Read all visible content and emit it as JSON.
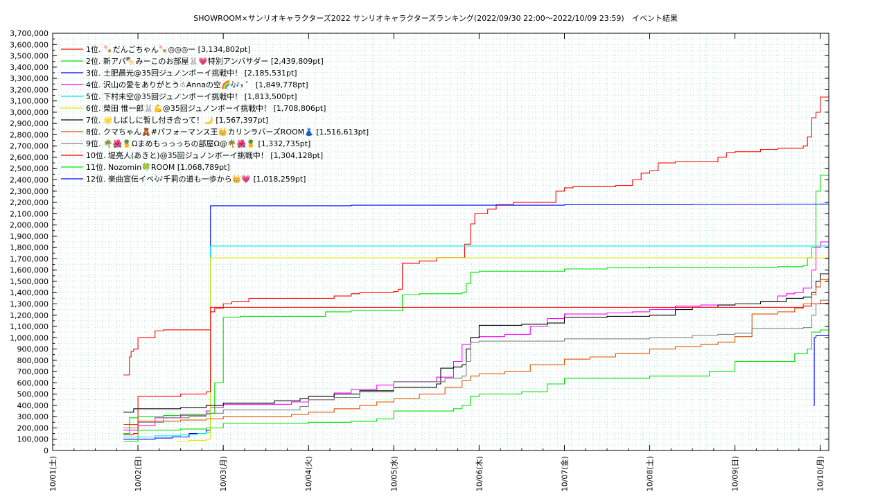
{
  "chart_data": {
    "type": "line",
    "title": "SHOWROOM×サンリオキャラクターズ2022 サンリオキャラクターズランキング(2022/09/30 22:00～2022/10/09 23:59)",
    "subtitle": "イベント結果",
    "xlabel": "",
    "ylabel": "",
    "x_tick_labels": [
      "10/01(土)",
      "10/02(日)",
      "10/03(月)",
      "10/04(火)",
      "10/05(水)",
      "10/06(木)",
      "10/07(金)",
      "10/08(土)",
      "10/09(日)",
      "10/10(月)"
    ],
    "xlim": [
      0,
      9.1
    ],
    "ylim": [
      0,
      3700000
    ],
    "y_tick_step": 100000,
    "grid": true,
    "legend_position": "top-left",
    "series": [
      {
        "name": "1位. 🍡だんごちゃん🍡◎◎◎ー [3,134,802pt]",
        "color": "#ff0000",
        "x": [
          0.83,
          0.88,
          0.9,
          0.92,
          0.95,
          1.0,
          1.05,
          1.1,
          1.2,
          1.3,
          1.35,
          1.5,
          1.7,
          1.8,
          1.85,
          1.85,
          1.9,
          2.0,
          2.1,
          2.3,
          2.5,
          2.8,
          3.0,
          3.3,
          3.5,
          3.6,
          3.8,
          4.0,
          4.05,
          4.1,
          4.3,
          4.5,
          4.7,
          4.8,
          4.83,
          4.9,
          4.95,
          5.1,
          5.2,
          5.4,
          5.6,
          5.8,
          5.9,
          6.0,
          6.1,
          6.3,
          6.6,
          6.8,
          6.9,
          7.0,
          7.1,
          7.3,
          7.5,
          7.6,
          7.8,
          7.9,
          8.0,
          8.1,
          8.3,
          8.5,
          8.7,
          8.8,
          8.85,
          8.9,
          8.95,
          9.0,
          9.1
        ],
        "y": [
          670000,
          670000,
          830000,
          880000,
          900000,
          1000000,
          1000000,
          1000000,
          1060000,
          1070000,
          1070000,
          1070000,
          1070000,
          1070000,
          1150000,
          1230000,
          1260000,
          1300000,
          1320000,
          1350000,
          1350000,
          1350000,
          1350000,
          1370000,
          1390000,
          1400000,
          1400000,
          1410000,
          1430000,
          1660000,
          1680000,
          1710000,
          1710000,
          1710000,
          1830000,
          2010000,
          2100000,
          2140000,
          2180000,
          2200000,
          2200000,
          2200000,
          2300000,
          2330000,
          2340000,
          2340000,
          2350000,
          2400000,
          2460000,
          2480000,
          2550000,
          2560000,
          2560000,
          2560000,
          2600000,
          2640000,
          2650000,
          2650000,
          2670000,
          2680000,
          2680000,
          2700000,
          2780000,
          2950000,
          3000000,
          3134802,
          3134802
        ]
      },
      {
        "name": "2位. 新アパ🍢みーこのお部屋🐰💗特別アンバサダー [2,439,809pt]",
        "color": "#00e000",
        "x": [
          0.83,
          0.85,
          0.9,
          1.0,
          1.3,
          1.6,
          1.8,
          1.85,
          1.9,
          2.0,
          2.2,
          2.5,
          2.8,
          3.0,
          3.2,
          3.5,
          3.9,
          4.0,
          4.1,
          4.3,
          4.7,
          4.8,
          4.85,
          4.9,
          5.0,
          5.3,
          5.8,
          6.0,
          6.5,
          7.0,
          7.5,
          8.0,
          8.5,
          8.8,
          8.85,
          8.9,
          8.95,
          9.0,
          9.1
        ],
        "y": [
          150000,
          150000,
          290000,
          300000,
          310000,
          310000,
          320000,
          330000,
          600000,
          1180000,
          1190000,
          1190000,
          1190000,
          1190000,
          1230000,
          1240000,
          1240000,
          1240000,
          1380000,
          1390000,
          1390000,
          1400000,
          1480000,
          1580000,
          1590000,
          1590000,
          1590000,
          1610000,
          1620000,
          1625000,
          1625000,
          1625000,
          1630000,
          1640000,
          1710000,
          1800000,
          2300000,
          2439809,
          2439809
        ]
      },
      {
        "name": "3位. 土肥晨光@35回ジュノンボーイ挑戦中！ [2,185,531pt]",
        "color": "#0000ff",
        "x": [
          0.83,
          0.85,
          0.9,
          1.2,
          1.4,
          1.6,
          1.8,
          1.85,
          1.85,
          2.0,
          2.5,
          3.0,
          3.5,
          4.0,
          4.5,
          5.0,
          5.5,
          6.0,
          6.5,
          7.0,
          7.5,
          8.0,
          8.5,
          9.0,
          9.1
        ],
        "y": [
          100000,
          100000,
          100000,
          110000,
          120000,
          150000,
          180000,
          200000,
          2170000,
          2170000,
          2170000,
          2170000,
          2175000,
          2175000,
          2175000,
          2175000,
          2175000,
          2180000,
          2180000,
          2180000,
          2182000,
          2182000,
          2185000,
          2185531,
          2185531
        ]
      },
      {
        "name": "4位. 沢山の愛をありがとう☃Annaの空🌈🎶₃ ゛ [1,849,778pt]",
        "color": "#ff00ff",
        "x": [
          0.83,
          0.88,
          1.0,
          1.2,
          1.5,
          1.8,
          1.85,
          2.0,
          2.5,
          2.8,
          3.0,
          3.3,
          3.5,
          3.8,
          4.0,
          4.3,
          4.5,
          4.7,
          4.8,
          4.9,
          5.0,
          5.3,
          5.6,
          5.8,
          6.0,
          6.5,
          6.8,
          7.0,
          7.3,
          7.6,
          7.8,
          8.0,
          8.3,
          8.5,
          8.6,
          8.7,
          8.8,
          8.9,
          8.95,
          9.0,
          9.1
        ],
        "y": [
          180000,
          180000,
          220000,
          290000,
          320000,
          350000,
          380000,
          410000,
          410000,
          430000,
          450000,
          510000,
          540000,
          580000,
          610000,
          610000,
          650000,
          790000,
          940000,
          1000000,
          1010000,
          1030000,
          1100000,
          1170000,
          1210000,
          1220000,
          1230000,
          1250000,
          1280000,
          1290000,
          1290000,
          1300000,
          1320000,
          1370000,
          1390000,
          1400000,
          1440000,
          1600000,
          1800000,
          1849778,
          1849778
        ]
      },
      {
        "name": "5位. 下村未空@35回ジュノンボーイ挑戦中！ [1,813,500pt]",
        "color": "#00e8e8",
        "x": [
          0.83,
          0.88,
          1.0,
          1.2,
          1.5,
          1.7,
          1.8,
          1.85,
          1.85,
          2.0,
          2.5,
          3.0,
          3.5,
          4.0,
          4.5,
          5.0,
          5.5,
          6.0,
          6.5,
          7.0,
          7.5,
          8.0,
          8.5,
          9.0,
          9.1
        ],
        "y": [
          120000,
          120000,
          120000,
          130000,
          140000,
          150000,
          160000,
          170000,
          1813500,
          1813500,
          1813500,
          1813500,
          1813500,
          1813500,
          1813500,
          1813500,
          1813500,
          1813500,
          1813500,
          1813500,
          1813500,
          1813500,
          1813500,
          1813500,
          1813500
        ]
      },
      {
        "name": "6位. 榮田 惟一郎🐰💪@35回ジュノンボーイ挑戦中！ [1,708,806pt]",
        "color": "#e8e800",
        "x": [
          1.45,
          1.5,
          1.6,
          1.7,
          1.8,
          1.85,
          1.85,
          2.0,
          2.5,
          3.0,
          3.5,
          4.0,
          4.5,
          5.0,
          5.5,
          6.0,
          6.5,
          7.0,
          7.5,
          8.0,
          8.5,
          9.0,
          9.1
        ],
        "y": [
          80000,
          80000,
          90000,
          90000,
          100000,
          100000,
          1708806,
          1708806,
          1708806,
          1708806,
          1708806,
          1708806,
          1708806,
          1708806,
          1708806,
          1708806,
          1708806,
          1708806,
          1708806,
          1708806,
          1708806,
          1708806,
          1708806
        ]
      },
      {
        "name": "7位. 🌟しばしに暫し付き合って！🌙 [1,567,397pt]",
        "color": "#000000",
        "x": [
          0.83,
          0.88,
          0.95,
          1.2,
          1.5,
          1.8,
          2.0,
          2.3,
          2.6,
          2.9,
          3.0,
          3.3,
          3.6,
          4.0,
          4.5,
          4.55,
          4.7,
          4.8,
          4.85,
          4.9,
          5.0,
          5.5,
          5.8,
          6.0,
          6.5,
          7.0,
          7.3,
          7.5,
          7.8,
          8.0,
          8.3,
          8.6,
          8.8,
          8.9,
          8.95,
          9.0,
          9.1
        ],
        "y": [
          340000,
          340000,
          370000,
          370000,
          380000,
          400000,
          420000,
          420000,
          440000,
          460000,
          480000,
          500000,
          530000,
          560000,
          590000,
          730000,
          740000,
          760000,
          900000,
          1000000,
          1110000,
          1120000,
          1130000,
          1180000,
          1190000,
          1200000,
          1250000,
          1270000,
          1290000,
          1300000,
          1320000,
          1350000,
          1360000,
          1400000,
          1500000,
          1567397,
          1567397
        ]
      },
      {
        "name": "8位. クマちゃん🧸#パフォーマンス王👑カリンラバーズROOM👗 [1,516,613pt]",
        "color": "#e05000",
        "x": [
          0.83,
          0.85,
          1.0,
          1.5,
          1.8,
          2.0,
          2.5,
          2.8,
          3.0,
          3.3,
          3.6,
          3.8,
          4.0,
          4.3,
          4.6,
          4.8,
          4.9,
          5.0,
          5.3,
          5.6,
          6.0,
          6.3,
          6.6,
          7.0,
          7.3,
          7.6,
          7.8,
          8.0,
          8.2,
          8.5,
          8.7,
          8.8,
          8.9,
          8.95,
          9.0,
          9.1
        ],
        "y": [
          230000,
          230000,
          260000,
          270000,
          280000,
          300000,
          300000,
          320000,
          340000,
          370000,
          400000,
          430000,
          460000,
          500000,
          560000,
          620000,
          660000,
          680000,
          700000,
          760000,
          810000,
          830000,
          860000,
          900000,
          920000,
          940000,
          960000,
          1010000,
          1210000,
          1230000,
          1260000,
          1300000,
          1380000,
          1450000,
          1516613,
          1516613
        ]
      },
      {
        "name": "9位. 🌴🌺🍍Ωまめもっっっちの部屋Ω@🌴🌺🍍 [1,332,735pt]",
        "color": "#808080",
        "x": [
          0.83,
          0.88,
          1.0,
          1.3,
          1.6,
          1.8,
          2.0,
          2.3,
          2.6,
          2.9,
          3.0,
          3.3,
          3.6,
          4.0,
          4.5,
          4.6,
          4.8,
          4.85,
          4.9,
          5.0,
          5.5,
          6.0,
          6.5,
          7.0,
          7.5,
          7.8,
          8.0,
          8.2,
          8.5,
          8.7,
          8.8,
          8.9,
          8.95,
          9.0,
          9.1
        ],
        "y": [
          200000,
          200000,
          250000,
          290000,
          300000,
          330000,
          360000,
          360000,
          360000,
          390000,
          450000,
          470000,
          520000,
          610000,
          610000,
          640000,
          660000,
          790000,
          960000,
          970000,
          970000,
          990000,
          990000,
          1000000,
          1020000,
          1030000,
          1040000,
          1080000,
          1080000,
          1080000,
          1090000,
          1200000,
          1300000,
          1332735,
          1332735
        ]
      },
      {
        "name": "10位. 堤亮人(あきと)@35回ジュノンボーイ挑戦中！ [1,304,128pt]",
        "color": "#ff0000",
        "x": [
          0.83,
          0.88,
          0.95,
          1.0,
          1.5,
          1.8,
          1.85,
          1.85,
          2.0,
          2.5,
          3.0,
          3.5,
          4.0,
          4.5,
          5.0,
          5.5,
          6.0,
          6.5,
          7.0,
          7.5,
          8.0,
          8.5,
          8.8,
          8.9,
          9.0,
          9.1
        ],
        "y": [
          140000,
          140000,
          150000,
          480000,
          500000,
          520000,
          550000,
          1270000,
          1270000,
          1270000,
          1270000,
          1270000,
          1270000,
          1270000,
          1270000,
          1270000,
          1270000,
          1270000,
          1270000,
          1270000,
          1270000,
          1270000,
          1280000,
          1300000,
          1304128,
          1304128
        ]
      },
      {
        "name": "11位. Nozomin🍀ROOM [1,068,789pt]",
        "color": "#00e000",
        "x": [
          0.83,
          0.88,
          1.0,
          1.5,
          1.8,
          2.0,
          2.5,
          3.0,
          3.5,
          3.8,
          4.0,
          4.5,
          4.7,
          4.8,
          4.9,
          5.0,
          5.5,
          5.8,
          6.0,
          6.5,
          7.0,
          7.5,
          7.7,
          8.0,
          8.5,
          8.7,
          8.85,
          8.9,
          9.0,
          9.1
        ],
        "y": [
          80000,
          80000,
          180000,
          190000,
          200000,
          240000,
          240000,
          250000,
          260000,
          280000,
          350000,
          350000,
          370000,
          400000,
          480000,
          500000,
          520000,
          590000,
          640000,
          640000,
          660000,
          660000,
          700000,
          790000,
          790000,
          860000,
          900000,
          1050000,
          1068789,
          1068789
        ]
      },
      {
        "name": "12位. 楽曲宣伝イベ🎶千莉の道も一歩から👑💗 [1,018,259pt]",
        "color": "#0000ff",
        "x": [
          8.92,
          8.93,
          8.95,
          9.0,
          9.1
        ],
        "y": [
          400000,
          1000000,
          1018259,
          1018259,
          1018259
        ]
      }
    ]
  }
}
